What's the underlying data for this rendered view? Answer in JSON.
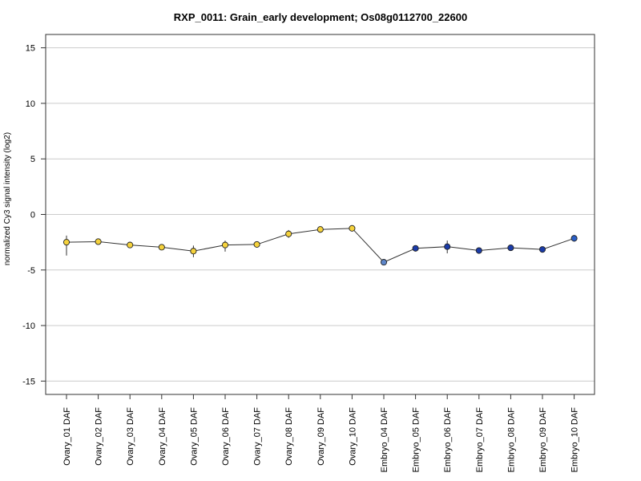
{
  "chart_data": {
    "type": "line",
    "title": "RXP_0011: Grain_early development; Os08g0112700_22600",
    "xlabel": "",
    "ylabel": "normalized Cy3 signal intensity (log2)",
    "ylim": [
      -16.2,
      16.2
    ],
    "yticks": [
      -15,
      -10,
      -5,
      0,
      5,
      10,
      15
    ],
    "grid": true,
    "categories": [
      "Ovary_01 DAF",
      "Ovary_02 DAF",
      "Ovary_03 DAF",
      "Ovary_04 DAF",
      "Ovary_05 DAF",
      "Ovary_06 DAF",
      "Ovary_07 DAF",
      "Ovary_08 DAF",
      "Ovary_09 DAF",
      "Ovary_10 DAF",
      "Embryo_04 DAF",
      "Embryo_05 DAF",
      "Embryo_06 DAF",
      "Embryo_07 DAF",
      "Embryo_08 DAF",
      "Embryo_09 DAF",
      "Embryo_10 DAF"
    ],
    "values": [
      -2.5,
      -2.45,
      -2.75,
      -2.95,
      -3.3,
      -2.75,
      -2.7,
      -1.75,
      -1.35,
      -1.25,
      -4.3,
      -3.05,
      -2.9,
      -3.25,
      -3.0,
      -3.15,
      -2.15
    ],
    "error_low": [
      -3.7,
      -2.6,
      -2.85,
      -3.05,
      -3.85,
      -3.35,
      -2.8,
      -2.1,
      -1.65,
      -1.35,
      -4.4,
      -3.15,
      -3.5,
      -3.45,
      -3.1,
      -3.25,
      -2.45
    ],
    "error_high": [
      -1.9,
      -2.3,
      -2.65,
      -2.85,
      -2.8,
      -2.35,
      -2.6,
      -1.4,
      -1.1,
      -1.15,
      -4.2,
      -2.95,
      -2.35,
      -3.05,
      -2.9,
      -3.05,
      -1.85
    ],
    "point_colors": [
      "#f5d23c",
      "#f5d23c",
      "#f5d23c",
      "#f5d23c",
      "#f5d23c",
      "#f5d23c",
      "#f5d23c",
      "#f5d23c",
      "#f5d23c",
      "#f5d23c",
      "#5e86c9",
      "#1a3ba8",
      "#1a3ba8",
      "#1a3ba8",
      "#1a3ba8",
      "#1a3ba8",
      "#2a5fc7"
    ],
    "line_color": "#333333",
    "grid_color": "#cccccc"
  }
}
